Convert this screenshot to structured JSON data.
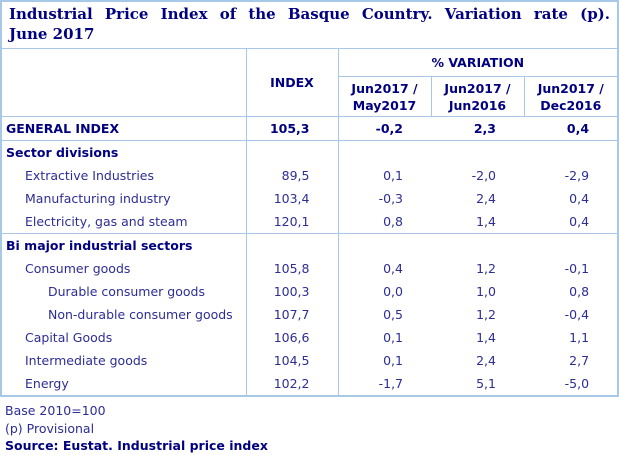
{
  "colors": {
    "border": "#a8c8e8",
    "navy": "#000080",
    "body-text": "#2d2d96"
  },
  "title": {
    "line1": "Industrial Price Index of the Basque Country. Variation rate (p).",
    "line2": "June 2017"
  },
  "table": {
    "index_header": "INDEX",
    "variation_group_header": "% VARIATION",
    "variation_columns": [
      {
        "line1": "Jun2017 /",
        "line2": "May2017"
      },
      {
        "line1": "Jun2017 /",
        "line2": "Jun2016"
      },
      {
        "line1": "Jun2017 /",
        "line2": "Dec2016"
      }
    ],
    "rows": [
      {
        "label": "GENERAL INDEX",
        "index": "105,3",
        "vs_prev_month": "-0,2",
        "vs_prev_year": "2,3",
        "vs_dec": "0,4"
      },
      {
        "label": "Sector divisions",
        "index": "",
        "vs_prev_month": "",
        "vs_prev_year": "",
        "vs_dec": ""
      },
      {
        "label": "Extractive Industries",
        "index": "89,5",
        "vs_prev_month": "0,1",
        "vs_prev_year": "-2,0",
        "vs_dec": "-2,9"
      },
      {
        "label": "Manufacturing industry",
        "index": "103,4",
        "vs_prev_month": "-0,3",
        "vs_prev_year": "2,4",
        "vs_dec": "0,4"
      },
      {
        "label": "Electricity, gas and steam",
        "index": "120,1",
        "vs_prev_month": "0,8",
        "vs_prev_year": "1,4",
        "vs_dec": "0,4"
      },
      {
        "label": "Bi major industrial sectors",
        "index": "",
        "vs_prev_month": "",
        "vs_prev_year": "",
        "vs_dec": ""
      },
      {
        "label": "Consumer goods",
        "index": "105,8",
        "vs_prev_month": "0,4",
        "vs_prev_year": "1,2",
        "vs_dec": "-0,1"
      },
      {
        "label": "Durable consumer goods",
        "index": "100,3",
        "vs_prev_month": "0,0",
        "vs_prev_year": "1,0",
        "vs_dec": "0,8"
      },
      {
        "label": "Non-durable consumer goods",
        "index": "107,7",
        "vs_prev_month": "0,5",
        "vs_prev_year": "1,2",
        "vs_dec": "-0,4"
      },
      {
        "label": "Capital Goods",
        "index": "106,6",
        "vs_prev_month": "0,1",
        "vs_prev_year": "1,4",
        "vs_dec": "1,1"
      },
      {
        "label": "Intermediate goods",
        "index": "104,5",
        "vs_prev_month": "0,1",
        "vs_prev_year": "2,4",
        "vs_dec": "2,7"
      },
      {
        "label": "Energy",
        "index": "102,2",
        "vs_prev_month": "-1,7",
        "vs_prev_year": "5,1",
        "vs_dec": "-5,0"
      }
    ]
  },
  "footer": {
    "base_note": "Base 2010=100",
    "provisional_note": "(p) Provisional",
    "source": "Source: Eustat. Industrial price index"
  }
}
